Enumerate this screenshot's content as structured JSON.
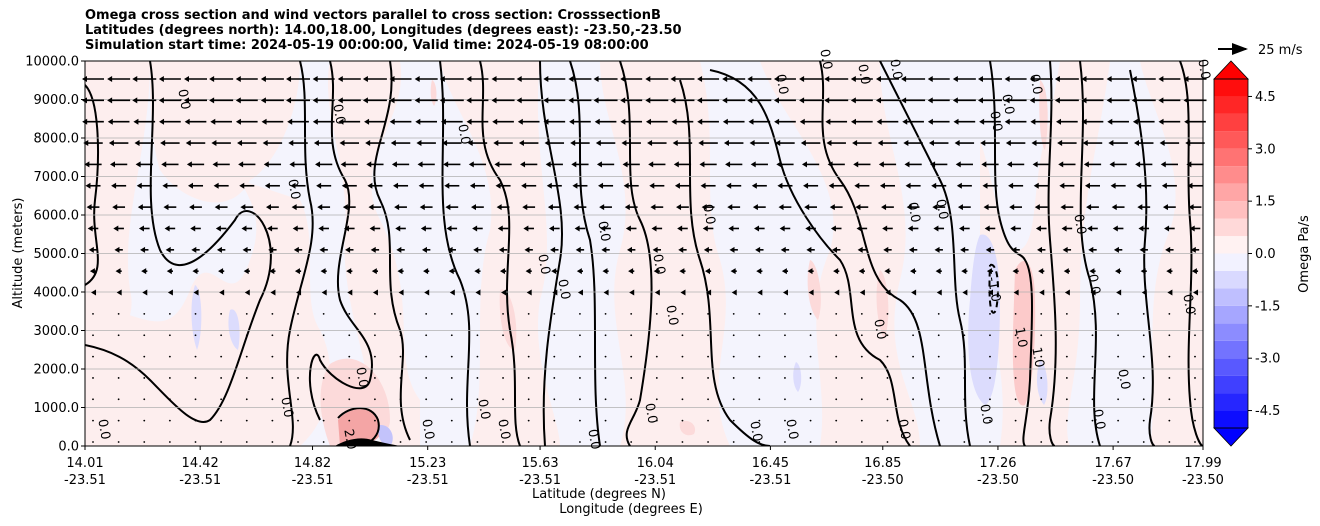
{
  "chart_data": {
    "type": "heatmap",
    "title_lines": [
      "Omega cross section and wind vectors parallel to cross section: CrosssectionB",
      "Latitudes (degrees north): 14.00,18.00, Longitudes (degrees east): -23.50,-23.50",
      "Simulation start time: 2024-05-19 00:00:00, Valid time: 2024-05-19 08:00:00"
    ],
    "ylabel": "Altitude (meters)",
    "xlabel_lines": [
      "Latitude (degrees N)",
      "Longitude (degrees E)"
    ],
    "ylim": [
      0,
      10000
    ],
    "xlim": [
      14.01,
      17.99
    ],
    "y_ticks": [
      "0.0",
      "1000.0",
      "2000.0",
      "3000.0",
      "4000.0",
      "5000.0",
      "6000.0",
      "7000.0",
      "8000.0",
      "9000.0",
      "10000.0"
    ],
    "x_ticks": [
      {
        "lat": "14.01",
        "lon": "-23.51"
      },
      {
        "lat": "14.42",
        "lon": "-23.51"
      },
      {
        "lat": "14.82",
        "lon": "-23.51"
      },
      {
        "lat": "15.23",
        "lon": "-23.51"
      },
      {
        "lat": "15.63",
        "lon": "-23.51"
      },
      {
        "lat": "16.04",
        "lon": "-23.51"
      },
      {
        "lat": "16.45",
        "lon": "-23.51"
      },
      {
        "lat": "16.85",
        "lon": "-23.50"
      },
      {
        "lat": "17.26",
        "lon": "-23.50"
      },
      {
        "lat": "17.67",
        "lon": "-23.50"
      },
      {
        "lat": "17.99",
        "lon": "-23.50"
      }
    ],
    "grid": "horizontal",
    "colorbar": {
      "label": "Omega Pa/s",
      "ticks": [
        "-4.5",
        "-3.0",
        "-1.5",
        "0.0",
        "1.5",
        "3.0",
        "4.5"
      ],
      "range": [
        -5.0,
        5.0
      ],
      "colormap": "bwr"
    },
    "quiver_key": "25 m/s",
    "contour_labels": [
      "0.0",
      "1.0",
      "-1.0",
      "2.0"
    ]
  }
}
